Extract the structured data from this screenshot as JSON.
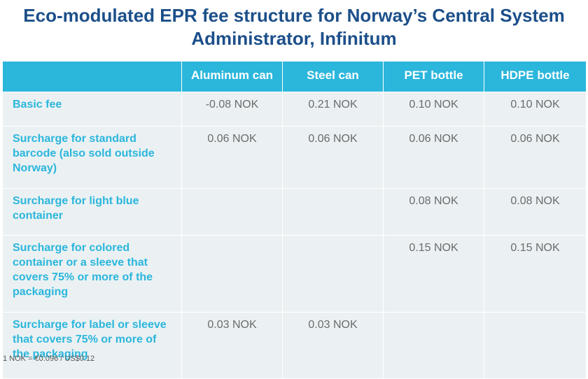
{
  "title": {
    "line1": "Eco-modulated EPR fee structure for Norway’s Central System",
    "line2": "Administrator, Infinitum"
  },
  "table": {
    "corner": "",
    "columns": [
      "Aluminum can",
      "Steel can",
      "PET bottle",
      "HDPE bottle"
    ],
    "rows": [
      {
        "label": "Basic fee",
        "values": [
          "-0.08 NOK",
          "0.21 NOK",
          "0.10 NOK",
          "0.10 NOK"
        ]
      },
      {
        "label": "Surcharge for standard barcode (also sold outside Norway)",
        "values": [
          "0.06 NOK",
          "0.06 NOK",
          "0.06 NOK",
          "0.06 NOK"
        ]
      },
      {
        "label": "Surcharge for light blue container",
        "values": [
          "",
          "",
          "0.08 NOK",
          "0.08 NOK"
        ]
      },
      {
        "label": "Surcharge for colored container or a sleeve that covers 75% or more of the packaging",
        "values": [
          "",
          "",
          "0.15 NOK",
          "0.15 NOK"
        ]
      },
      {
        "label": "Surcharge for label or sleeve that covers 75% or more of the packaging",
        "values": [
          "0.03 NOK",
          "0.03 NOK",
          "",
          ""
        ]
      }
    ]
  },
  "footnote": "1 NOK = €0.096 / US$0.12",
  "colors": {
    "title": "#1c4f8a",
    "header_bg": "#2bb6dc",
    "row_label": "#2bb6dc",
    "cell_bg": "#ebf1f3",
    "value_text": "#6b6b6b"
  }
}
